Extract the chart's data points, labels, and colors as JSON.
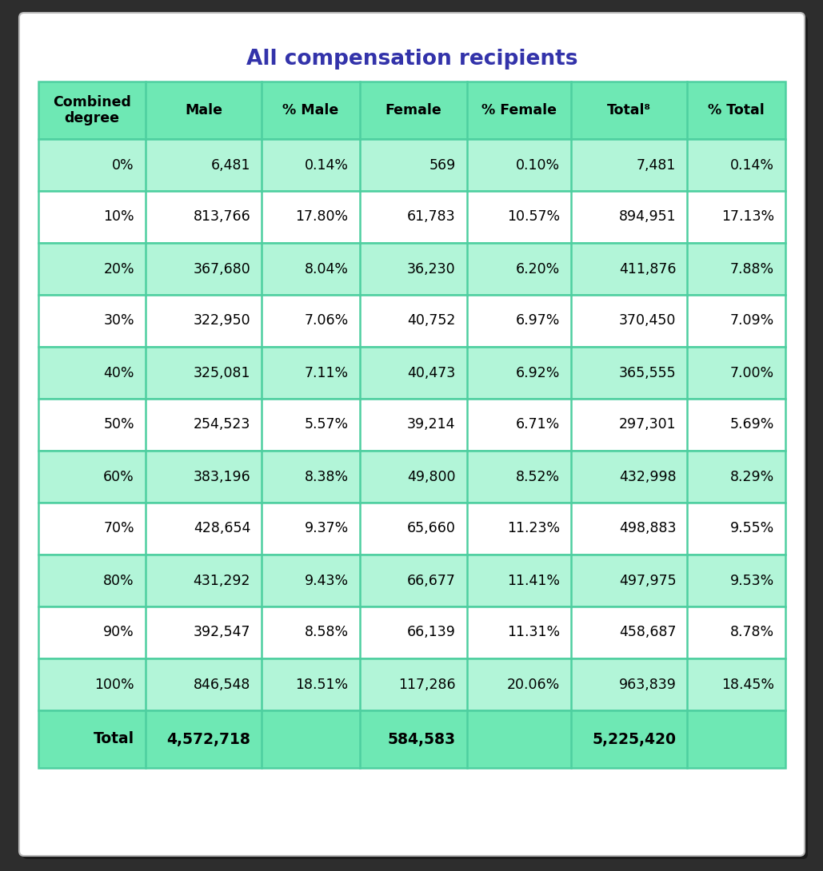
{
  "title": "All compensation recipients",
  "title_color": "#3333aa",
  "columns": [
    "Combined\ndegree",
    "Male",
    "% Male",
    "Female",
    "% Female",
    "Total⁸",
    "% Total"
  ],
  "rows": [
    [
      "0%",
      "6,481",
      "0.14%",
      "569",
      "0.10%",
      "7,481",
      "0.14%"
    ],
    [
      "10%",
      "813,766",
      "17.80%",
      "61,783",
      "10.57%",
      "894,951",
      "17.13%"
    ],
    [
      "20%",
      "367,680",
      "8.04%",
      "36,230",
      "6.20%",
      "411,876",
      "7.88%"
    ],
    [
      "30%",
      "322,950",
      "7.06%",
      "40,752",
      "6.97%",
      "370,450",
      "7.09%"
    ],
    [
      "40%",
      "325,081",
      "7.11%",
      "40,473",
      "6.92%",
      "365,555",
      "7.00%"
    ],
    [
      "50%",
      "254,523",
      "5.57%",
      "39,214",
      "6.71%",
      "297,301",
      "5.69%"
    ],
    [
      "60%",
      "383,196",
      "8.38%",
      "49,800",
      "8.52%",
      "432,998",
      "8.29%"
    ],
    [
      "70%",
      "428,654",
      "9.37%",
      "65,660",
      "11.23%",
      "498,883",
      "9.55%"
    ],
    [
      "80%",
      "431,292",
      "9.43%",
      "66,677",
      "11.41%",
      "497,975",
      "9.53%"
    ],
    [
      "90%",
      "392,547",
      "8.58%",
      "66,139",
      "11.31%",
      "458,687",
      "8.78%"
    ],
    [
      "100%",
      "846,548",
      "18.51%",
      "117,286",
      "20.06%",
      "963,839",
      "18.45%"
    ]
  ],
  "total_row": [
    "Total",
    "4,572,718",
    "",
    "584,583",
    "",
    "5,225,420",
    ""
  ],
  "header_bg": "#6ee8b4",
  "row_bg_even": "#b2f5d8",
  "row_bg_odd": "#ffffff",
  "total_bg": "#6ee8b4",
  "border_color": "#4ecfa0",
  "outer_bg": "#2d2d2d",
  "title_fontsize": 19,
  "header_fontsize": 12.5,
  "cell_fontsize": 12.5,
  "total_fontsize": 13.5,
  "col_widths_rel": [
    1.18,
    1.28,
    1.08,
    1.18,
    1.15,
    1.28,
    1.08
  ]
}
